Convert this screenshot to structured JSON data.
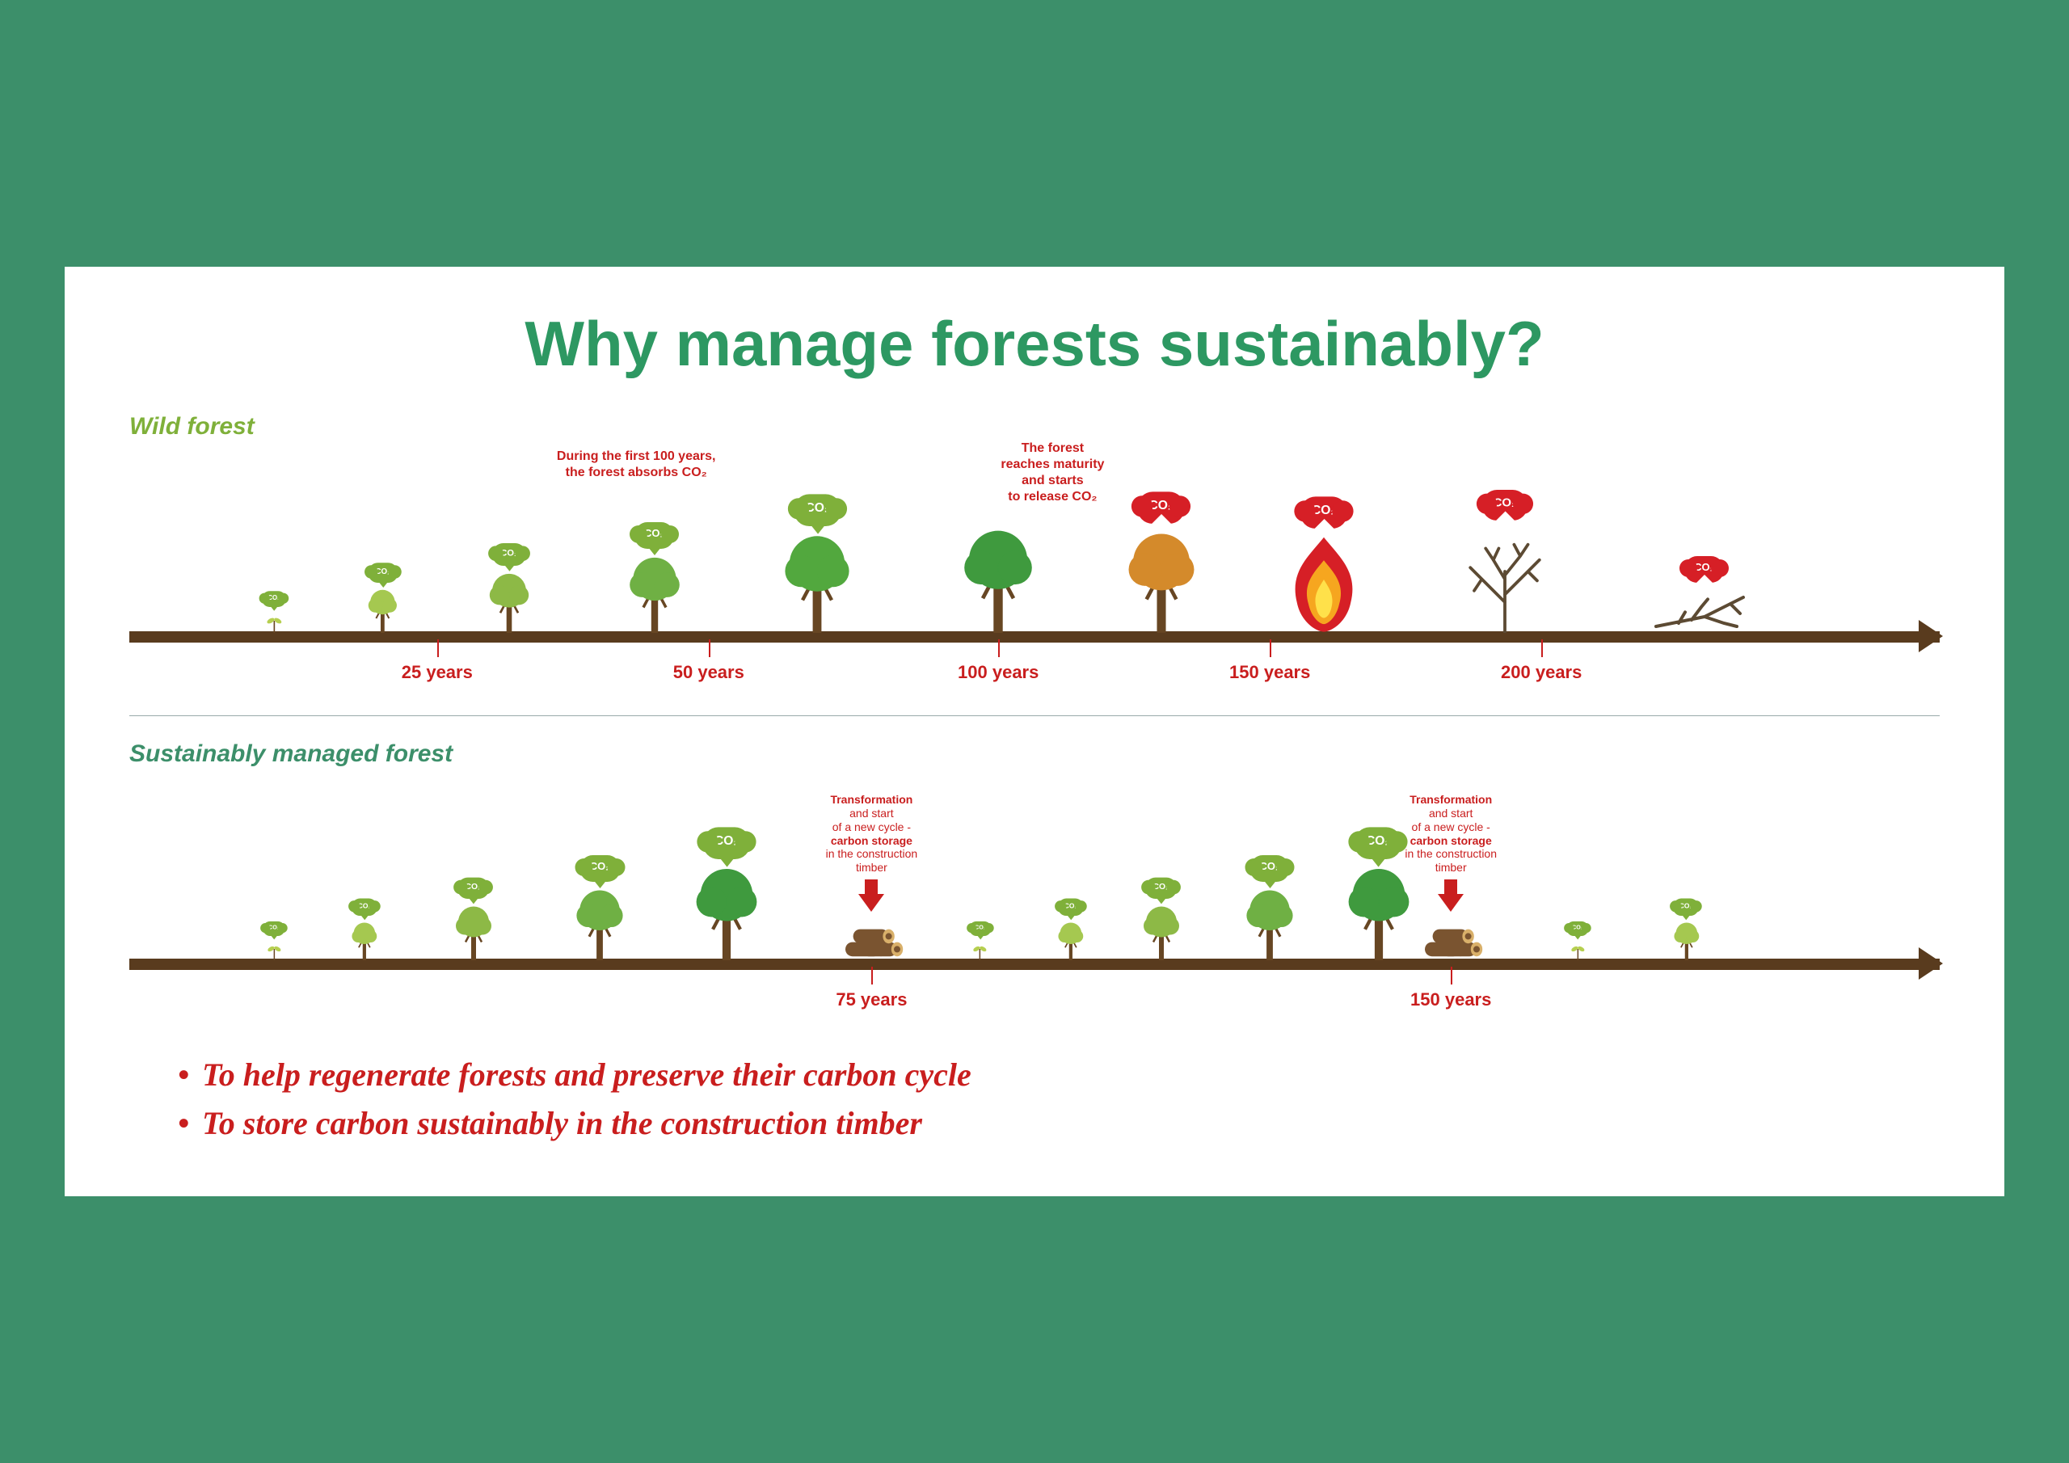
{
  "title": "Why manage forests sustainably?",
  "colors": {
    "page_bg": "#3c8f6a",
    "card_bg": "#ffffff",
    "title_color": "#2d9862",
    "wild_label_color": "#7fb03a",
    "sustain_label_color": "#3c8f6a",
    "timeline_bar": "#593b1e",
    "tick_color": "#c91e1e",
    "annotation_color": "#c91e1e",
    "bullet_color": "#c91e1e",
    "co2_absorb": "#7fb03a",
    "co2_release": "#d61f26",
    "tree_trunk": "#674623",
    "tree_greens": [
      "#b6cf4f",
      "#a5c850",
      "#8db946",
      "#6fb044",
      "#52a83e",
      "#3f9a3e"
    ],
    "tree_orange": "#d48a2b",
    "fire_outer": "#d61f26",
    "fire_inner": "#f6a61f",
    "fire_core": "#ffe14a",
    "dead_branch": "#5c4a33",
    "log_brown": "#7a5430",
    "log_ring": "#d9b06a"
  },
  "wild": {
    "label": "Wild forest",
    "annotation_absorb": "During the first 100 years,\nthe forest absorbs CO₂",
    "annotation_absorb_pos_pct": 28,
    "annotation_release": "The forest\nreaches maturity\nand starts\nto release CO₂",
    "annotation_release_pos_pct": 51,
    "ticks": [
      {
        "pos_pct": 17,
        "label": "25 years"
      },
      {
        "pos_pct": 32,
        "label": "50 years"
      },
      {
        "pos_pct": 48,
        "label": "100 years"
      },
      {
        "pos_pct": 63,
        "label": "150 years"
      },
      {
        "pos_pct": 78,
        "label": "200 years"
      }
    ],
    "trees": [
      {
        "pos_pct": 8,
        "kind": "sprout",
        "size": 22,
        "color": "#b6cf4f",
        "co2": "absorb",
        "co2_size": 0.6
      },
      {
        "pos_pct": 14,
        "kind": "tree",
        "size": 40,
        "color": "#a5c850",
        "co2": "absorb",
        "co2_size": 0.75
      },
      {
        "pos_pct": 21,
        "kind": "tree",
        "size": 55,
        "color": "#8db946",
        "co2": "absorb",
        "co2_size": 0.85
      },
      {
        "pos_pct": 29,
        "kind": "tree",
        "size": 70,
        "color": "#6fb044",
        "co2": "absorb",
        "co2_size": 1.0
      },
      {
        "pos_pct": 38,
        "kind": "tree",
        "size": 90,
        "color": "#52a83e",
        "co2": "absorb",
        "co2_size": 1.2
      },
      {
        "pos_pct": 48,
        "kind": "tree",
        "size": 95,
        "color": "#3f9a3e",
        "co2": null
      },
      {
        "pos_pct": 57,
        "kind": "tree",
        "size": 92,
        "color": "#d48a2b",
        "co2": "release",
        "co2_size": 1.2
      },
      {
        "pos_pct": 66,
        "kind": "fire",
        "size": 95,
        "co2": "release",
        "co2_size": 1.2
      },
      {
        "pos_pct": 76,
        "kind": "dead",
        "size": 95,
        "co2": "release",
        "co2_size": 1.15
      },
      {
        "pos_pct": 87,
        "kind": "fallen",
        "size": 80,
        "co2": "release",
        "co2_size": 1.0
      }
    ]
  },
  "sustainable": {
    "label": "Sustainably managed forest",
    "transformation_heading": "Transformation",
    "transformation_line2": "and start",
    "transformation_line3": "of a new cycle -",
    "transformation_bold": "carbon storage",
    "transformation_line5": "in the construction",
    "transformation_line6": "timber",
    "ticks": [
      {
        "pos_pct": 41,
        "label": "75 years"
      },
      {
        "pos_pct": 73,
        "label": "150 years"
      }
    ],
    "cycle1_trees": [
      {
        "pos_pct": 8,
        "kind": "sprout",
        "size": 20,
        "color": "#b6cf4f",
        "co2": "absorb",
        "co2_size": 0.55
      },
      {
        "pos_pct": 13,
        "kind": "tree",
        "size": 35,
        "color": "#a5c850",
        "co2": "absorb",
        "co2_size": 0.65
      },
      {
        "pos_pct": 19,
        "kind": "tree",
        "size": 50,
        "color": "#8db946",
        "co2": "absorb",
        "co2_size": 0.8
      },
      {
        "pos_pct": 26,
        "kind": "tree",
        "size": 65,
        "color": "#6fb044",
        "co2": "absorb",
        "co2_size": 1.0
      },
      {
        "pos_pct": 33,
        "kind": "tree",
        "size": 85,
        "color": "#3f9a3e",
        "co2": "absorb",
        "co2_size": 1.2
      }
    ],
    "cycle2_trees": [
      {
        "pos_pct": 47,
        "kind": "sprout",
        "size": 20,
        "color": "#b6cf4f",
        "co2": "absorb",
        "co2_size": 0.55
      },
      {
        "pos_pct": 52,
        "kind": "tree",
        "size": 35,
        "color": "#a5c850",
        "co2": "absorb",
        "co2_size": 0.65
      },
      {
        "pos_pct": 57,
        "kind": "tree",
        "size": 50,
        "color": "#8db946",
        "co2": "absorb",
        "co2_size": 0.8
      },
      {
        "pos_pct": 63,
        "kind": "tree",
        "size": 65,
        "color": "#6fb044",
        "co2": "absorb",
        "co2_size": 1.0
      },
      {
        "pos_pct": 69,
        "kind": "tree",
        "size": 85,
        "color": "#3f9a3e",
        "co2": "absorb",
        "co2_size": 1.2
      }
    ],
    "cycle3_trees": [
      {
        "pos_pct": 80,
        "kind": "sprout",
        "size": 20,
        "color": "#b6cf4f",
        "co2": "absorb",
        "co2_size": 0.55
      },
      {
        "pos_pct": 86,
        "kind": "tree",
        "size": 35,
        "color": "#a5c850",
        "co2": "absorb",
        "co2_size": 0.65
      }
    ],
    "transformations": [
      {
        "pos_pct": 41
      },
      {
        "pos_pct": 73
      }
    ]
  },
  "bullets": [
    "To help regenerate forests and preserve their carbon cycle",
    "To store carbon sustainably in the construction timber"
  ],
  "co2_label": "CO₂"
}
